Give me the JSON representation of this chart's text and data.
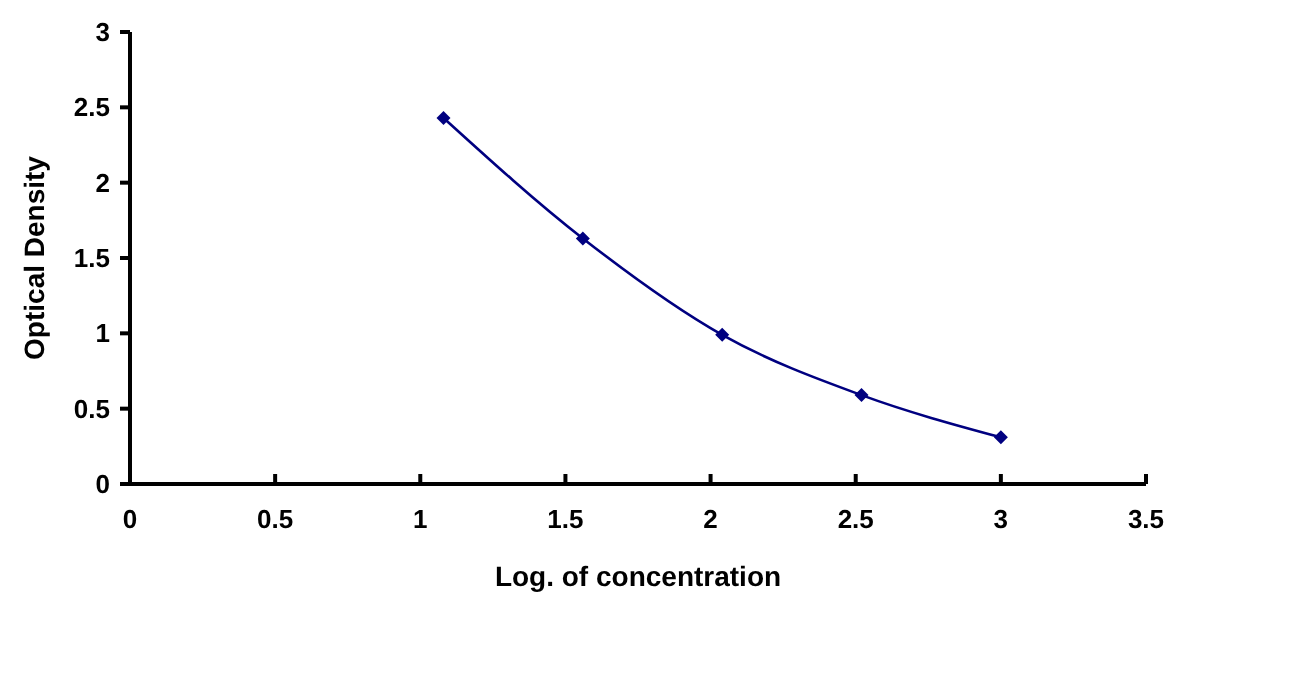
{
  "chart_data": {
    "type": "line",
    "xlabel": "Log. of concentration",
    "ylabel": "Optical Density",
    "x": [
      1.08,
      1.56,
      2.04,
      2.52,
      3.0
    ],
    "series": [
      {
        "color": "#000080",
        "values": [
          2.43,
          1.63,
          0.99,
          0.59,
          0.31
        ]
      }
    ],
    "xlim": [
      0,
      3.5
    ],
    "xticks": [
      0,
      0.5,
      1,
      1.5,
      2,
      2.5,
      3,
      3.5
    ],
    "ylim": [
      0,
      3
    ],
    "yticks": [
      0,
      0.5,
      1,
      1.5,
      2,
      2.5,
      3
    ],
    "marker": "diamond",
    "line_style": "solid",
    "grid": false
  }
}
